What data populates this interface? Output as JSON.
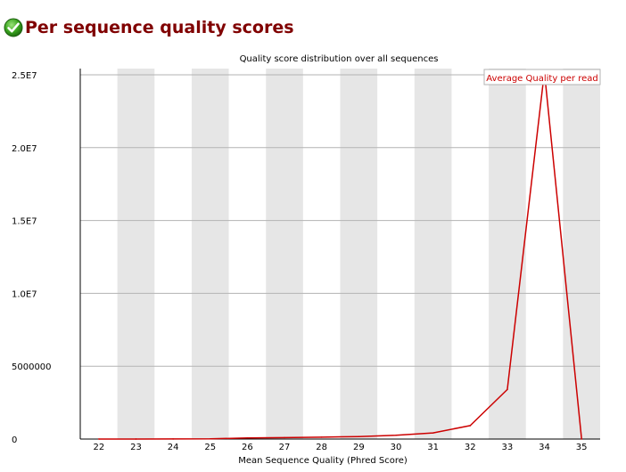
{
  "page": {
    "heading": "Per sequence quality scores",
    "status_icon": "check-circle-icon"
  },
  "chart_data": {
    "type": "line",
    "title": "Quality score distribution over all sequences",
    "xlabel": "Mean Sequence Quality (Phred Score)",
    "ylabel": "",
    "x": [
      22,
      23,
      24,
      25,
      26,
      27,
      28,
      29,
      30,
      31,
      32,
      33,
      34,
      35
    ],
    "xlim": [
      21.5,
      35.5
    ],
    "ylim": [
      0,
      25000000
    ],
    "y_ticks": [
      0,
      5000000,
      10000000,
      15000000,
      20000000,
      25000000
    ],
    "y_tick_labels": [
      "0",
      "5000000",
      "1.0E7",
      "1.5E7",
      "2.0E7",
      "2.5E7"
    ],
    "series": [
      {
        "name": "Average Quality per read",
        "color": "#cc0000",
        "values": [
          1000,
          2000,
          5000,
          15000,
          80000,
          100000,
          130000,
          170000,
          260000,
          420000,
          920000,
          3400000,
          25200000,
          0
        ]
      }
    ],
    "grid": true,
    "alternating_bands": true,
    "band_color": "#e6e6e6",
    "legend_position": "top-right"
  }
}
